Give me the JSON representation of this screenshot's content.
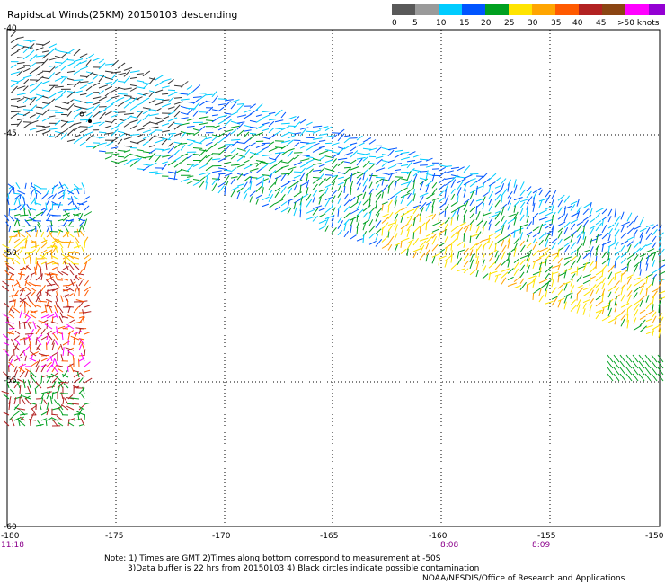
{
  "title": "Rapidscat Winds(25KM) 20150103 descending",
  "legend": {
    "colors": [
      "#595959",
      "#9a9a9a",
      "#00ccff",
      "#0055ff",
      "#00a020",
      "#ffe400",
      "#ffa500",
      "#ff5a00",
      "#b22222",
      "#8b4513",
      "#ff00ff",
      "#9400d3",
      "#2b0066"
    ],
    "labels": [
      "0",
      "5",
      "10",
      "15",
      "20",
      "25",
      "30",
      "35",
      "40",
      "45",
      ">50 knots"
    ]
  },
  "y_axis_labels": [
    "-40",
    "-45",
    "-50",
    "-55",
    "-60"
  ],
  "x_axis_labels": [
    "-180",
    "-175",
    "-170",
    "-165",
    "-160",
    "-155",
    "-150"
  ],
  "time_labels": [
    "11:18",
    "8:08",
    "8:09"
  ],
  "notes": {
    "line1": "Note: 1) Times are GMT 2)Times along bottom correspond to measurement at -50S",
    "line2": "3)Data buffer is 22 hrs from 20150103 4) Black circles indicate possible contamination",
    "credit": "NOAA/NESDIS/Office of Research and Applications"
  }
}
